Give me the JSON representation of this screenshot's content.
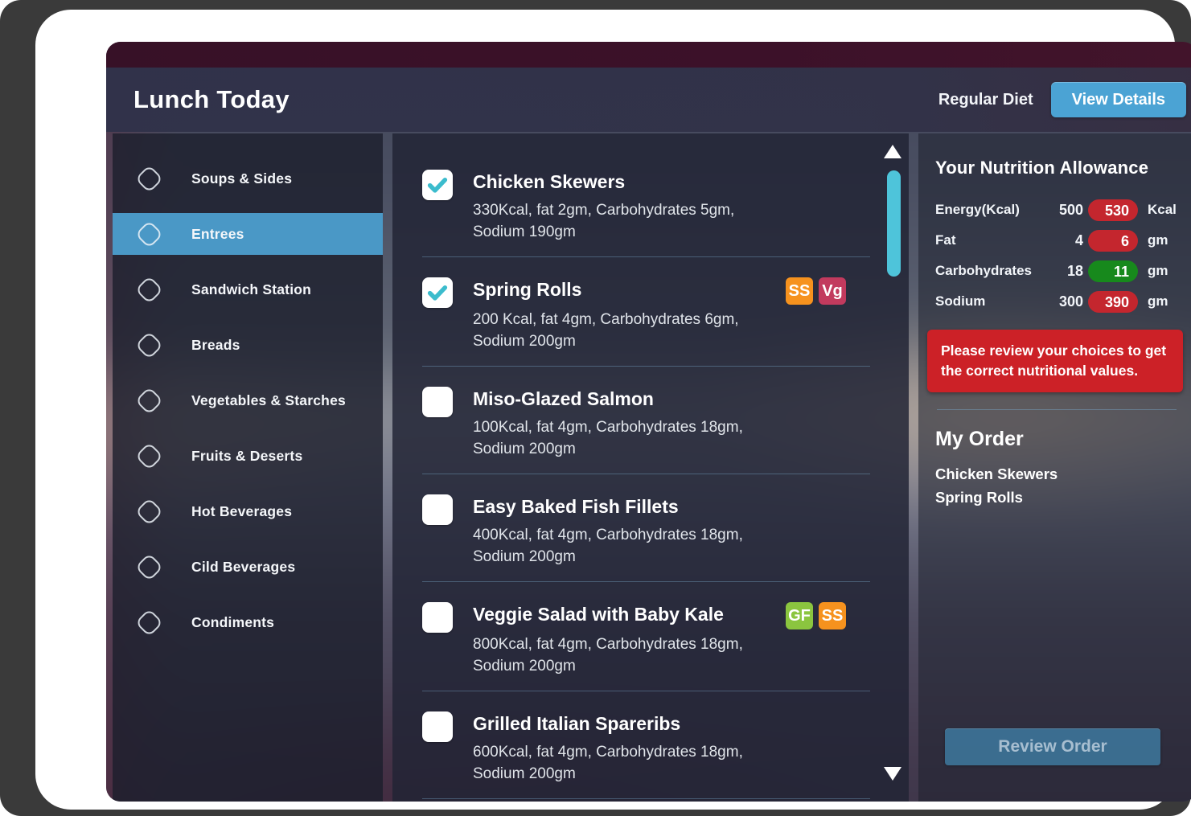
{
  "header": {
    "title": "Lunch Today",
    "diet_label": "Regular Diet",
    "view_details_label": "View Details"
  },
  "sidebar": {
    "items": [
      {
        "label": "Soups & Sides",
        "active": false
      },
      {
        "label": "Entrees",
        "active": true
      },
      {
        "label": "Sandwich Station",
        "active": false
      },
      {
        "label": "Breads",
        "active": false
      },
      {
        "label": "Vegetables & Starches",
        "active": false
      },
      {
        "label": "Fruits & Deserts",
        "active": false
      },
      {
        "label": "Hot Beverages",
        "active": false
      },
      {
        "label": "Cild Beverages",
        "active": false
      },
      {
        "label": "Condiments",
        "active": false
      }
    ]
  },
  "menu": {
    "items": [
      {
        "title": "Chicken Skewers",
        "checked": true,
        "desc1": "330Kcal, fat 2gm, Carbohydrates 5gm,",
        "desc2": "Sodium 190gm",
        "badges": []
      },
      {
        "title": "Spring Rolls",
        "checked": true,
        "desc1": "200 Kcal, fat 4gm, Carbohydrates 6gm,",
        "desc2": "Sodium 200gm",
        "badges": [
          {
            "text": "SS",
            "color": "#f6921e"
          },
          {
            "text": "Vg",
            "color": "#c23a5e"
          }
        ]
      },
      {
        "title": "Miso-Glazed Salmon",
        "checked": false,
        "desc1": "100Kcal, fat 4gm, Carbohydrates 18gm,",
        "desc2": "Sodium 200gm",
        "badges": []
      },
      {
        "title": "Easy Baked Fish Fillets",
        "checked": false,
        "desc1": "400Kcal, fat 4gm, Carbohydrates 18gm,",
        "desc2": "Sodium 200gm",
        "badges": []
      },
      {
        "title": "Veggie Salad with Baby Kale",
        "checked": false,
        "desc1": "800Kcal, fat 4gm, Carbohydrates 18gm,",
        "desc2": "Sodium 200gm",
        "badges": [
          {
            "text": "GF",
            "color": "#8bc53f"
          },
          {
            "text": "SS",
            "color": "#f6921e"
          }
        ]
      },
      {
        "title": "Grilled Italian Spareribs",
        "checked": false,
        "desc1": "600Kcal, fat 4gm, Carbohydrates 18gm,",
        "desc2": "Sodium 200gm",
        "badges": []
      }
    ]
  },
  "nutrition": {
    "title": "Your Nutrition Allowance",
    "rows": [
      {
        "label": "Energy(Kcal)",
        "allowance": "500",
        "current": "530",
        "unit": "Kcal",
        "status": "over"
      },
      {
        "label": "Fat",
        "allowance": "4",
        "current": "6",
        "unit": "gm",
        "status": "over"
      },
      {
        "label": "Carbohydrates",
        "allowance": "18",
        "current": "11",
        "unit": "gm",
        "status": "under"
      },
      {
        "label": "Sodium",
        "allowance": "300",
        "current": "390",
        "unit": "gm",
        "status": "over"
      }
    ],
    "warning": "Please review your choices to get the correct nutritional values."
  },
  "order": {
    "title": "My Order",
    "items": [
      "Chicken Skewers",
      "Spring Rolls"
    ],
    "review_label": "Review Order"
  },
  "colors": {
    "accent_blue": "#4a98c6",
    "button_blue": "#4ba3d4",
    "check_teal": "#3bbccd",
    "scrollbar_teal": "#4ec4da",
    "pill_over": "#c4262e",
    "pill_under": "#17891c",
    "warning_red": "#cc2127",
    "badge_orange": "#f6921e",
    "badge_green": "#8bc53f",
    "badge_crimson": "#c23a5e"
  }
}
